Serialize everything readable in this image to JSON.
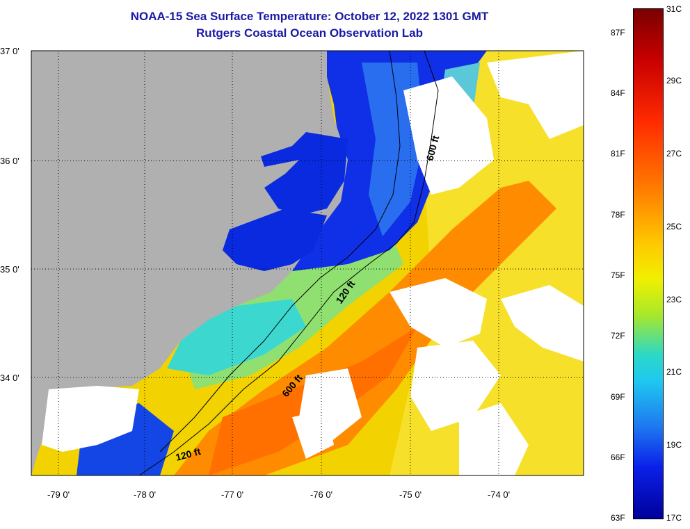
{
  "title_line1": "NOAA-15 Sea Surface Temperature:  October 12, 2022 1301 GMT",
  "title_line2": "Rutgers Coastal Ocean Observation Lab",
  "lat_labels": [
    "37 0'",
    "36 0'",
    "35 0'",
    "34 0'"
  ],
  "lon_labels": [
    "-79 0'",
    "-78 0'",
    "-77 0'",
    "-76 0'",
    "-75 0'",
    "-74 0'"
  ],
  "isobath_labels": {
    "a": "600 ft",
    "b": "120 ft",
    "c": "600 ft",
    "d": "120 ft"
  },
  "colorbar": {
    "fahrenheit": [
      "87F",
      "84F",
      "81F",
      "78F",
      "75F",
      "72F",
      "69F",
      "66F",
      "63F"
    ],
    "celsius": [
      "31C",
      "29C",
      "27C",
      "25C",
      "23C",
      "21C",
      "19C",
      "17C"
    ],
    "colors_top_to_bottom": [
      "#7a0000",
      "#ff2a00",
      "#ffc800",
      "#f0f000",
      "#2ad8c8",
      "#1e78f0",
      "#00009a"
    ]
  },
  "colors": {
    "land": "#b0b0b0",
    "cloud": "#ffffff",
    "title": "#1a1aa6"
  }
}
